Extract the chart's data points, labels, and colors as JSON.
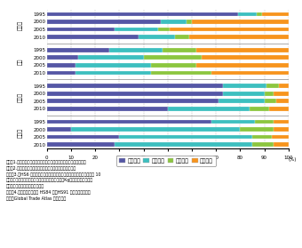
{
  "categories": [
    "加工品",
    "銃品",
    "資本財",
    "消費財"
  ],
  "years": [
    "1995",
    "2000",
    "2005",
    "2010"
  ],
  "colors": [
    "#5557a5",
    "#3dbfbf",
    "#8cc63f",
    "#f7941d"
  ],
  "legend_labels": [
    "５倍以上",
    "２～５倍",
    "１～２倍",
    "１倍未満"
  ],
  "data": [
    [
      [
        79,
        8,
        2,
        11
      ],
      [
        47,
        11,
        2,
        40
      ],
      [
        28,
        18,
        5,
        49
      ],
      [
        38,
        15,
        6,
        41
      ]
    ],
    [
      [
        26,
        22,
        14,
        38
      ],
      [
        13,
        27,
        24,
        36
      ],
      [
        12,
        31,
        19,
        38
      ],
      [
        12,
        31,
        25,
        32
      ]
    ],
    [
      [
        73,
        18,
        5,
        4
      ],
      [
        73,
        17,
        4,
        6
      ],
      [
        71,
        19,
        5,
        5
      ],
      [
        50,
        34,
        8,
        8
      ]
    ],
    [
      [
        68,
        18,
        8,
        6
      ],
      [
        10,
        70,
        14,
        6
      ],
      [
        30,
        55,
        8,
        7
      ],
      [
        28,
        57,
        9,
        6
      ]
    ]
  ],
  "note_lines": [
    "備考：1.　単価の倍率＝日本からの輸入単価／中国からの輸入単価。",
    "　　　2.　シェアは日本及び中国からの輸入額合計で算出。",
    "　　　3.　HS6 桁で、日中からの輸入額に極端な差のない（少なくとも 10",
    "　　　　　倍以内）の品目で、同じ数量単位（個、Kg）でデータが入手で",
    "　　　　　きる品目同士を比較。",
    "　　　4.　機械関係として HS84 類～HS91 類を対象に計算。",
    "資料：Global Trade Atlas から作成。"
  ]
}
